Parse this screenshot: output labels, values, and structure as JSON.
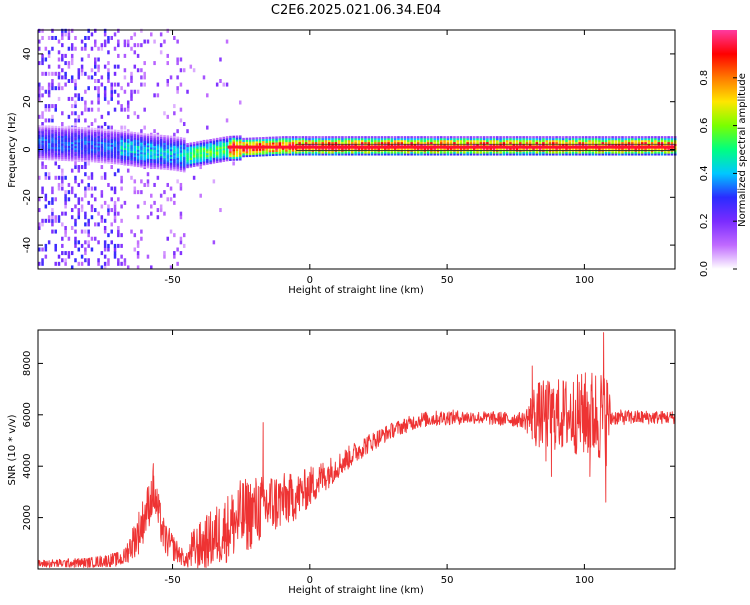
{
  "page": {
    "title": "C2E6.2025.021.06.34.E04"
  },
  "chart_data": [
    {
      "type": "heatmap",
      "name": "spectrogram",
      "xlabel": "Height of straight line (km)",
      "ylabel": "Frequency (Hz)",
      "xlim": [
        -99,
        133
      ],
      "ylim": [
        -50,
        50
      ],
      "xticks": [
        -50,
        0,
        50,
        100
      ],
      "yticks": [
        -40,
        -20,
        0,
        20,
        40
      ],
      "colorbar": {
        "label": "Normalized spectral amplitude",
        "range": [
          0.0,
          1.0
        ],
        "ticks": [
          0.0,
          0.2,
          0.4,
          0.6,
          0.8
        ],
        "colors": [
          "#ffffff",
          "#c06aff",
          "#7a2cff",
          "#2a2cff",
          "#00c8ff",
          "#00ff80",
          "#7aff00",
          "#ffe600",
          "#ff7a00",
          "#ff0000",
          "#ff3aa0"
        ]
      },
      "tone": {
        "freq_track": [
          {
            "x": -99,
            "f": 2.5
          },
          {
            "x": -80,
            "f": 1.5
          },
          {
            "x": -70,
            "f": 0.5
          },
          {
            "x": -60,
            "f": -1
          },
          {
            "x": -50,
            "f": -2
          },
          {
            "x": -45,
            "f": -3
          },
          {
            "x": -40,
            "f": -2
          },
          {
            "x": -30,
            "f": 0
          },
          {
            "x": -10,
            "f": 1
          },
          {
            "x": 0,
            "f": 1
          },
          {
            "x": 133,
            "f": 1
          }
        ]
      }
    },
    {
      "type": "line",
      "name": "snr",
      "xlabel": "Height of straight line (km)",
      "ylabel": "SNR (10 * v/v)",
      "xlim": [
        -99,
        133
      ],
      "ylim": [
        0,
        9300
      ],
      "xticks": [
        -50,
        0,
        50,
        100
      ],
      "yticks": [
        2000,
        4000,
        6000,
        8000
      ],
      "color": "#ee3333",
      "envelope": [
        {
          "x": -99,
          "base": 200,
          "noise": 150
        },
        {
          "x": -80,
          "base": 250,
          "noise": 200
        },
        {
          "x": -68,
          "base": 400,
          "noise": 300
        },
        {
          "x": -62,
          "base": 1500,
          "noise": 900
        },
        {
          "x": -57,
          "base": 3000,
          "noise": 900
        },
        {
          "x": -53,
          "base": 1200,
          "noise": 700
        },
        {
          "x": -45,
          "base": 300,
          "noise": 250
        },
        {
          "x": -43,
          "base": 700,
          "noise": 800
        },
        {
          "x": -35,
          "base": 1200,
          "noise": 1200
        },
        {
          "x": -25,
          "base": 2000,
          "noise": 1500
        },
        {
          "x": -15,
          "base": 2500,
          "noise": 1300
        },
        {
          "x": -5,
          "base": 2800,
          "noise": 900
        },
        {
          "x": 0,
          "base": 3200,
          "noise": 800
        },
        {
          "x": 10,
          "base": 4000,
          "noise": 500
        },
        {
          "x": 20,
          "base": 4800,
          "noise": 400
        },
        {
          "x": 30,
          "base": 5400,
          "noise": 300
        },
        {
          "x": 40,
          "base": 5800,
          "noise": 300
        },
        {
          "x": 50,
          "base": 5900,
          "noise": 300
        },
        {
          "x": 60,
          "base": 5900,
          "noise": 250
        },
        {
          "x": 78,
          "base": 5800,
          "noise": 300
        },
        {
          "x": 82,
          "base": 6000,
          "noise": 1300
        },
        {
          "x": 95,
          "base": 6000,
          "noise": 1500
        },
        {
          "x": 108,
          "base": 6000,
          "noise": 2000
        },
        {
          "x": 110,
          "base": 5900,
          "noise": 300
        },
        {
          "x": 133,
          "base": 5900,
          "noise": 250
        }
      ],
      "spikes": [
        {
          "x": -57,
          "y": 4100
        },
        {
          "x": -17,
          "y": 5700
        },
        {
          "x": 81,
          "y": 7900
        },
        {
          "x": 86,
          "y": 4200
        },
        {
          "x": 88,
          "y": 3600
        },
        {
          "x": 100,
          "y": 7200
        },
        {
          "x": 102,
          "y": 3600
        },
        {
          "x": 107,
          "y": 9200
        },
        {
          "x": 107.8,
          "y": 2600
        }
      ]
    }
  ]
}
